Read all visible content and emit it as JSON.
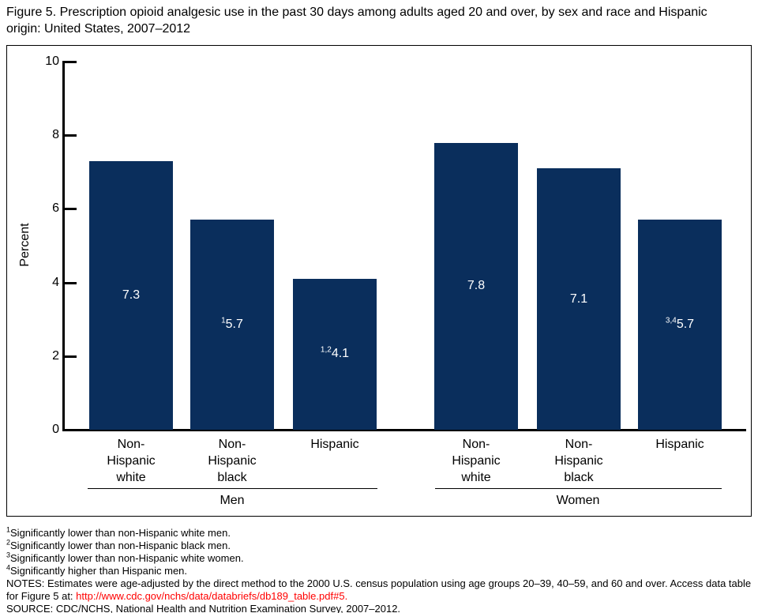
{
  "page": {
    "title": "Figure 5. Prescription opioid analgesic use in the past 30 days among adults aged 20 and over, by sex and race and Hispanic origin: United States, 2007–2012"
  },
  "chart_data": {
    "type": "bar",
    "title": "Prescription opioid analgesic use in the past 30 days among adults aged 20 and over, by sex and race and Hispanic origin: United States, 2007–2012",
    "ylabel": "Percent",
    "xlabel": "",
    "ylim": [
      0,
      10
    ],
    "yticks": [
      0,
      2,
      4,
      6,
      8,
      10
    ],
    "grid": false,
    "legend": "none",
    "bar_color": "#0a2e5c",
    "value_label_color": "#ffffff",
    "categories": [
      "Non-Hispanic white",
      "Non-Hispanic black",
      "Hispanic"
    ],
    "groups": [
      {
        "label": "Men",
        "bars": [
          {
            "category": "Non-Hispanic white",
            "category_lines": "Non-\nHispanic\nwhite",
            "value": 7.3,
            "value_label": "7.3",
            "label_sup": ""
          },
          {
            "category": "Non-Hispanic black",
            "category_lines": "Non-\nHispanic\nblack",
            "value": 5.7,
            "value_label": "5.7",
            "label_sup": "1"
          },
          {
            "category": "Hispanic",
            "category_lines": "Hispanic",
            "value": 4.1,
            "value_label": "4.1",
            "label_sup": "1,2"
          }
        ]
      },
      {
        "label": "Women",
        "bars": [
          {
            "category": "Non-Hispanic white",
            "category_lines": "Non-\nHispanic\nwhite",
            "value": 7.8,
            "value_label": "7.8",
            "label_sup": ""
          },
          {
            "category": "Non-Hispanic black",
            "category_lines": "Non-\nHispanic\nblack",
            "value": 7.1,
            "value_label": "7.1",
            "label_sup": ""
          },
          {
            "category": "Hispanic",
            "category_lines": "Hispanic",
            "value": 5.7,
            "value_label": "5.7",
            "label_sup": "3,4"
          }
        ]
      }
    ]
  },
  "footnotes": [
    {
      "marker": "1",
      "text": "Significantly lower than non-Hispanic white men."
    },
    {
      "marker": "2",
      "text": "Significantly lower than non-Hispanic black men."
    },
    {
      "marker": "3",
      "text": "Significantly lower than non-Hispanic white women."
    },
    {
      "marker": "4",
      "text": "Significantly higher than Hispanic men."
    }
  ],
  "notes": {
    "prefix": "NOTES: Estimates were age-adjusted by the direct method to the 2000 U.S. census population using age groups 20–39, 40–59, and 60 and over. Access data table for Figure 5 at: ",
    "link": "http://www.cdc.gov/nchs/data/databriefs/db189_table.pdf#5",
    "suffix": ".",
    "link_color": "#ff0000"
  },
  "source": "SOURCE: CDC/NCHS, National Health and Nutrition Examination Survey, 2007–2012."
}
